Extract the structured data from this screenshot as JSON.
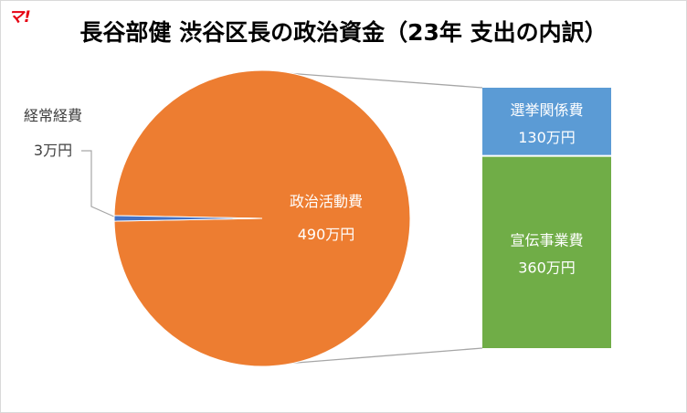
{
  "logo_text": "マ!",
  "chart_data": {
    "type": "bar-of-pie",
    "title": "長谷部健 渋谷区長の政治資金（23年 支出の内訳）",
    "unit": "万円",
    "pie": {
      "slices": [
        {
          "label": "政治活動費",
          "value": 490,
          "value_text": "490万円",
          "color": "#ED7D31"
        },
        {
          "label": "経常経費",
          "value": 3,
          "value_text": "3万円",
          "color": "#4472C4"
        }
      ]
    },
    "bar": {
      "parent": "政治活動費",
      "segments": [
        {
          "label": "選挙関係費",
          "value": 130,
          "value_text": "130万円",
          "color": "#5B9BD5"
        },
        {
          "label": "宣伝事業費",
          "value": 360,
          "value_text": "360万円",
          "color": "#70AD47"
        }
      ]
    }
  }
}
